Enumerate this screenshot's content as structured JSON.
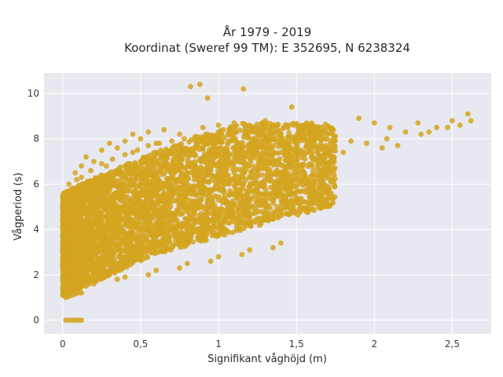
{
  "chart_data": {
    "type": "scatter",
    "title_line1": "År 1979 - 2019",
    "title_line2": "Koordinat (Sweref 99 TM): E 352695, N 6238324",
    "xlabel": "Signifikant våghöjd (m)",
    "ylabel": "Vågperiod (s)",
    "xlim": [
      -0.12,
      2.75
    ],
    "ylim": [
      -0.6,
      10.9
    ],
    "xticks": [
      0,
      0.5,
      1,
      1.5,
      2,
      2.5
    ],
    "xtick_labels": [
      "0",
      "0,5",
      "1",
      "1,5",
      "2",
      "2,5"
    ],
    "yticks": [
      0,
      2,
      4,
      6,
      8,
      10
    ],
    "ytick_labels": [
      "0",
      "2",
      "4",
      "6",
      "8",
      "10"
    ],
    "grid": true,
    "colors": {
      "marker": "#d4a520",
      "plot_bg": "#e8e8f0",
      "grid": "#ffffff"
    },
    "series": [
      {
        "x": [
          0.02,
          0.04,
          0.06,
          0.08,
          0.1,
          0.12,
          0.03,
          0.05,
          0.07,
          0.09,
          0.11,
          0.02,
          0.04,
          0.06,
          0.08,
          0.1,
          0.12,
          0.14,
          0.03,
          0.05,
          0.08,
          0.12,
          0.15,
          0.18,
          0.2,
          0.06,
          0.1,
          0.14,
          0.18,
          0.22,
          0.25,
          0.3,
          0.04,
          0.09,
          0.15,
          0.2,
          0.25,
          0.3,
          0.35,
          0.4,
          0.08,
          0.12,
          0.2,
          0.28,
          0.35,
          0.42,
          0.5,
          0.15,
          0.25,
          0.35,
          0.45,
          0.5,
          0.55,
          0.6,
          0.65,
          0.3,
          0.4,
          0.5,
          0.6,
          0.7,
          0.75,
          0.8,
          0.45,
          0.55,
          0.65,
          0.75,
          0.85,
          0.9,
          0.95,
          1.0,
          0.5,
          0.6,
          0.7,
          0.8,
          0.9,
          1.0,
          1.1,
          1.2,
          0.7,
          0.8,
          0.9,
          1.0,
          1.1,
          1.2,
          1.3,
          1.4,
          0.9,
          1.0,
          1.1,
          1.2,
          1.3,
          1.4,
          1.5,
          1.6,
          1.1,
          1.2,
          1.3,
          1.4,
          1.5,
          1.6,
          1.7,
          1.8,
          1.3,
          1.45,
          1.55,
          1.65,
          1.75,
          1.85,
          1.95,
          2.05,
          1.9,
          2.0,
          2.1,
          2.2,
          2.3,
          2.4,
          2.5,
          2.6,
          0.82,
          0.88,
          0.93,
          1.16,
          0.2,
          0.4,
          0.6,
          0.8,
          1.0,
          1.2,
          1.4,
          0.15,
          0.35,
          0.55,
          0.75,
          0.95,
          1.15,
          1.35,
          0.02,
          0.04,
          0.06,
          0.08,
          0.1,
          0.12,
          0.12,
          0.18,
          0.25,
          0.32,
          0.4,
          0.48,
          0.55,
          0.62,
          0.7,
          0.78,
          0.85,
          0.92,
          1.0,
          0.35,
          0.45,
          0.55,
          0.65,
          0.75,
          0.85,
          0.95,
          1.05,
          2.08,
          2.15,
          2.28,
          2.35,
          2.47,
          2.55,
          2.62,
          1.47,
          0.3,
          0.4,
          0.5
        ],
        "y": [
          0,
          0,
          0,
          0,
          0,
          0,
          1.2,
          1.3,
          1.35,
          1.4,
          1.45,
          1.8,
          2.0,
          2.2,
          2.4,
          2.6,
          2.8,
          3.0,
          3.5,
          4.0,
          4.5,
          4.0,
          3.5,
          3.0,
          2.5,
          5.0,
          5.5,
          5.8,
          5.0,
          4.5,
          4.0,
          3.5,
          6.0,
          6.2,
          6.0,
          5.8,
          5.5,
          5.0,
          4.5,
          4.2,
          6.5,
          6.8,
          7.0,
          6.8,
          6.5,
          6.0,
          5.5,
          7.2,
          7.5,
          7.6,
          7.4,
          7.0,
          6.5,
          6.0,
          5.5,
          7.8,
          7.9,
          8.0,
          7.8,
          7.5,
          7.2,
          6.8,
          8.2,
          8.3,
          8.4,
          8.2,
          8.0,
          7.6,
          7.2,
          6.8,
          5.0,
          5.2,
          5.5,
          5.8,
          6.0,
          6.2,
          6.5,
          6.8,
          4.5,
          4.8,
          5.0,
          5.3,
          5.6,
          5.9,
          6.2,
          6.5,
          8.5,
          8.6,
          8.5,
          8.3,
          8.0,
          7.8,
          7.5,
          7.2,
          8.7,
          8.6,
          8.4,
          8.2,
          8.0,
          7.8,
          7.6,
          7.4,
          8.8,
          8.6,
          8.5,
          8.3,
          8.1,
          7.9,
          7.8,
          7.6,
          8.9,
          8.7,
          8.5,
          8.3,
          8.2,
          8.5,
          8.8,
          9.1,
          10.3,
          10.4,
          9.8,
          10.2,
          1.6,
          1.9,
          2.2,
          2.5,
          2.8,
          3.1,
          3.4,
          1.5,
          1.8,
          2.0,
          2.3,
          2.6,
          2.9,
          3.2,
          1.0,
          1.05,
          1.1,
          1.15,
          1.2,
          1.2,
          6.3,
          6.6,
          6.9,
          7.1,
          7.3,
          7.5,
          7.7,
          7.8,
          7.9,
          8.0,
          8.1,
          8.2,
          8.3,
          3.8,
          3.9,
          4.0,
          4.1,
          4.2,
          4.3,
          4.4,
          4.5,
          8.0,
          7.7,
          8.7,
          8.3,
          8.5,
          8.6,
          8.8,
          9.4,
          3.6,
          3.8,
          4.0
        ]
      }
    ]
  }
}
